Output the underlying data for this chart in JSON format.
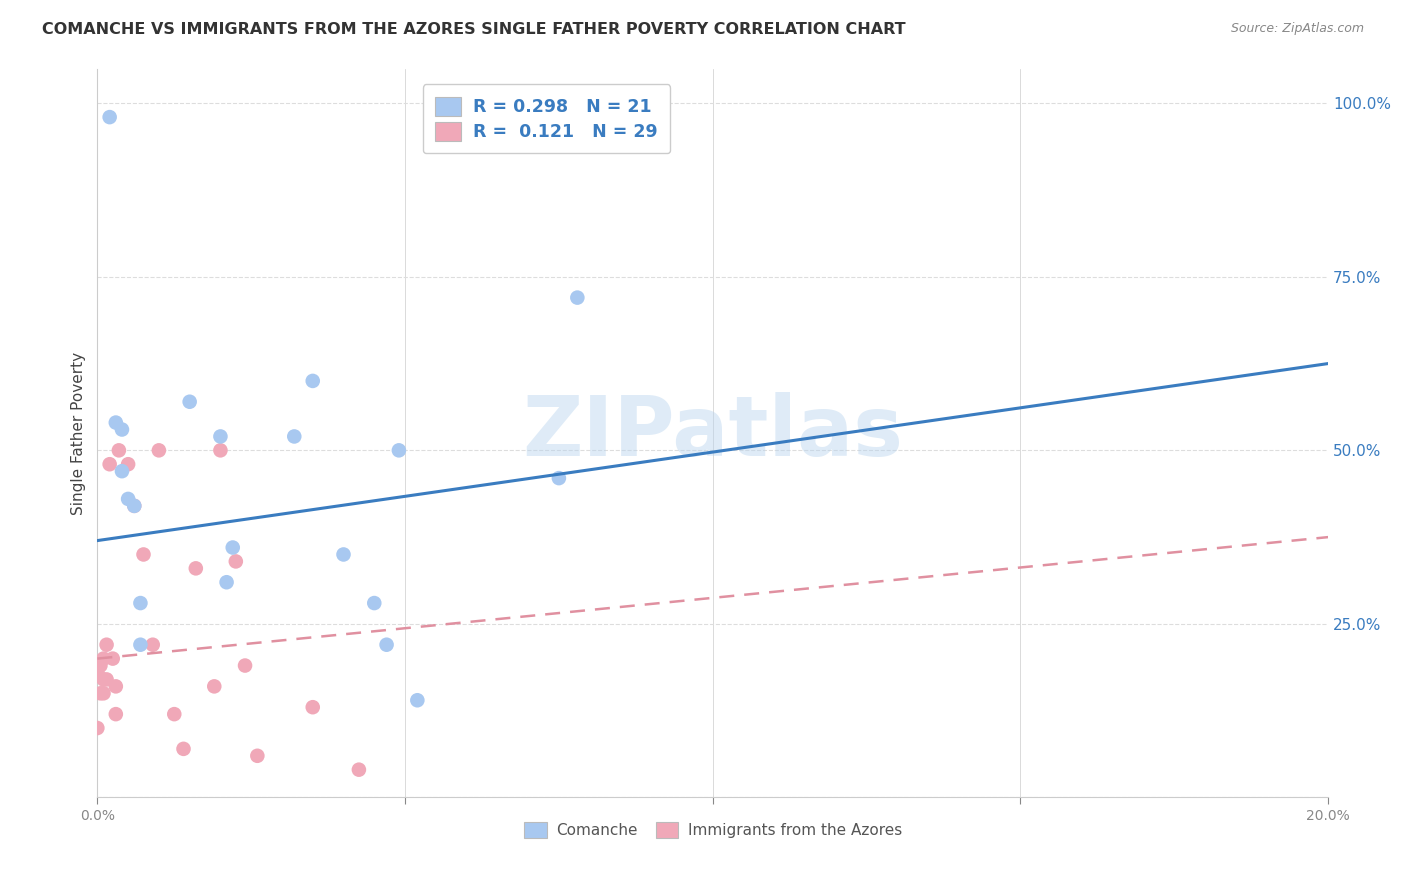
{
  "title": "COMANCHE VS IMMIGRANTS FROM THE AZORES SINGLE FATHER POVERTY CORRELATION CHART",
  "source": "Source: ZipAtlas.com",
  "ylabel": "Single Father Poverty",
  "y_ticks": [
    0.0,
    0.25,
    0.5,
    0.75,
    1.0
  ],
  "y_tick_labels": [
    "",
    "25.0%",
    "50.0%",
    "75.0%",
    "100.0%"
  ],
  "x_ticks": [
    0.0,
    0.05,
    0.1,
    0.15,
    0.2
  ],
  "x_tick_labels": [
    "0.0%",
    "",
    "",
    "",
    "20.0%"
  ],
  "xlim": [
    0.0,
    0.2
  ],
  "ylim": [
    0.0,
    1.05
  ],
  "legend_labels": [
    "Comanche",
    "Immigrants from the Azores"
  ],
  "comanche_R": 0.298,
  "comanche_N": 21,
  "azores_R": 0.121,
  "azores_N": 29,
  "comanche_color": "#a8c8f0",
  "azores_color": "#f0a8b8",
  "comanche_line_color": "#3a7cc0",
  "azores_line_color": "#e090a0",
  "watermark": "ZIPatlas",
  "comanche_x": [
    0.002,
    0.003,
    0.004,
    0.004,
    0.005,
    0.006,
    0.007,
    0.007,
    0.015,
    0.02,
    0.021,
    0.022,
    0.032,
    0.035,
    0.04,
    0.045,
    0.047,
    0.049,
    0.052,
    0.075,
    0.078
  ],
  "comanche_y": [
    0.98,
    0.54,
    0.53,
    0.47,
    0.43,
    0.42,
    0.28,
    0.22,
    0.57,
    0.52,
    0.31,
    0.36,
    0.52,
    0.6,
    0.35,
    0.28,
    0.22,
    0.5,
    0.14,
    0.46,
    0.72
  ],
  "azores_x": [
    0.0,
    0.0,
    0.0005,
    0.0005,
    0.001,
    0.001,
    0.001,
    0.0015,
    0.0015,
    0.002,
    0.0025,
    0.003,
    0.003,
    0.0035,
    0.005,
    0.006,
    0.0075,
    0.009,
    0.01,
    0.0125,
    0.014,
    0.016,
    0.019,
    0.02,
    0.0225,
    0.024,
    0.026,
    0.035,
    0.0425
  ],
  "azores_y": [
    0.18,
    0.1,
    0.19,
    0.15,
    0.2,
    0.17,
    0.15,
    0.22,
    0.17,
    0.48,
    0.2,
    0.16,
    0.12,
    0.5,
    0.48,
    0.42,
    0.35,
    0.22,
    0.5,
    0.12,
    0.07,
    0.33,
    0.16,
    0.5,
    0.34,
    0.19,
    0.06,
    0.13,
    0.04
  ],
  "background_color": "#ffffff",
  "grid_color": "#dddddd",
  "comanche_line_x0": 0.0,
  "comanche_line_y0": 0.37,
  "comanche_line_x1": 0.2,
  "comanche_line_y1": 0.625,
  "azores_line_x0": 0.0,
  "azores_line_y0": 0.2,
  "azores_line_x1": 0.2,
  "azores_line_y1": 0.375
}
